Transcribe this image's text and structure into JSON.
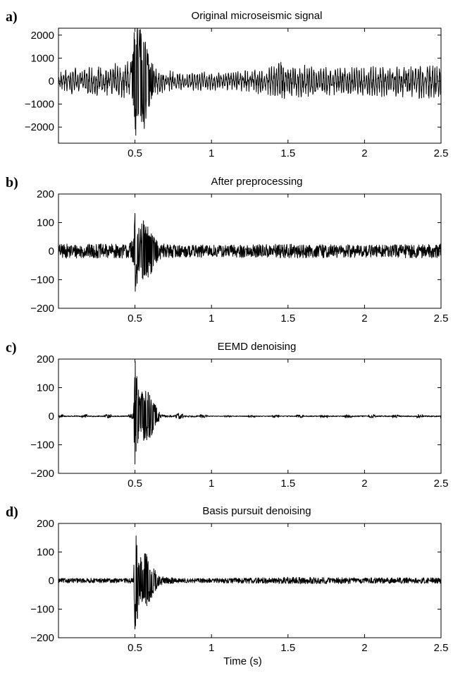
{
  "chart_data": [
    {
      "type": "line",
      "panel_label": "a)",
      "title": "Original microseismic signal",
      "xlabel": "",
      "ylabel": "",
      "xlim": [
        0,
        2.5
      ],
      "ylim": [
        -2700,
        2300
      ],
      "xticks": [
        0.5,
        1,
        1.5,
        2,
        2.5
      ],
      "xtick_labels": [
        "0.5",
        "1",
        "1.5",
        "2",
        "2.5"
      ],
      "yticks": [
        2000,
        1000,
        0,
        -1000,
        -2000
      ],
      "ytick_labels": [
        "2000",
        "1000",
        "0",
        "−1000",
        "−2000"
      ],
      "grid": false,
      "series": [
        {
          "x": [
            0,
            0.1,
            0.2,
            0.3,
            0.4,
            0.48,
            0.5,
            0.52,
            0.54,
            0.56,
            0.58,
            0.6,
            0.62,
            0.65,
            0.7,
            0.8,
            0.9,
            1.0,
            1.2,
            1.4,
            1.45,
            1.5,
            1.6,
            1.8,
            2.0,
            2.2,
            2.4,
            2.5
          ],
          "envelope": [
            400,
            600,
            700,
            700,
            800,
            900,
            2700,
            2400,
            2200,
            2100,
            1500,
            900,
            700,
            600,
            500,
            400,
            450,
            400,
            500,
            700,
            1000,
            700,
            800,
            600,
            700,
            700,
            800,
            900
          ],
          "noise": "oscillatory"
        }
      ]
    },
    {
      "type": "line",
      "panel_label": "b)",
      "title": "After preprocessing",
      "xlabel": "",
      "ylabel": "",
      "xlim": [
        0,
        2.5
      ],
      "ylim": [
        -200,
        200
      ],
      "xticks": [
        0.5,
        1,
        1.5,
        2,
        2.5
      ],
      "xtick_labels": [
        "0.5",
        "1",
        "1.5",
        "2",
        "2.5"
      ],
      "yticks": [
        200,
        100,
        0,
        -100,
        -200
      ],
      "ytick_labels": [
        "200",
        "100",
        "0",
        "−100",
        "−200"
      ],
      "grid": false,
      "series": [
        {
          "x": [
            0,
            0.45,
            0.49,
            0.5,
            0.51,
            0.53,
            0.55,
            0.57,
            0.6,
            0.62,
            0.65,
            0.7,
            0.8,
            1.0,
            1.5,
            2.0,
            2.5
          ],
          "envelope": [
            25,
            25,
            40,
            180,
            130,
            70,
            110,
            100,
            90,
            60,
            35,
            25,
            22,
            22,
            25,
            22,
            25
          ],
          "noise": "dense"
        }
      ]
    },
    {
      "type": "line",
      "panel_label": "c)",
      "title": "EEMD denoising",
      "xlabel": "",
      "ylabel": "",
      "xlim": [
        0,
        2.5
      ],
      "ylim": [
        -200,
        200
      ],
      "xticks": [
        0.5,
        1,
        1.5,
        2,
        2.5
      ],
      "xtick_labels": [
        "0.5",
        "1",
        "1.5",
        "2",
        "2.5"
      ],
      "yticks": [
        200,
        100,
        0,
        -100,
        -200
      ],
      "ytick_labels": [
        "200",
        "100",
        "0",
        "−100",
        "−200"
      ],
      "grid": false,
      "series": [
        {
          "x": [
            0,
            0.45,
            0.49,
            0.5,
            0.51,
            0.53,
            0.55,
            0.57,
            0.6,
            0.62,
            0.65,
            0.7,
            0.8,
            0.9,
            1.0,
            1.5,
            2.0,
            2.5
          ],
          "envelope": [
            6,
            6,
            10,
            200,
            150,
            70,
            100,
            110,
            85,
            55,
            20,
            12,
            10,
            8,
            3,
            5,
            6,
            6
          ],
          "noise": "bursty"
        }
      ]
    },
    {
      "type": "line",
      "panel_label": "d)",
      "title": "Basis pursuit denoising",
      "xlabel": "Time (s)",
      "ylabel": "",
      "xlim": [
        0,
        2.5
      ],
      "ylim": [
        -200,
        200
      ],
      "xticks": [
        0.5,
        1,
        1.5,
        2,
        2.5
      ],
      "xtick_labels": [
        "0.5",
        "1",
        "1.5",
        "2",
        "2.5"
      ],
      "yticks": [
        200,
        100,
        0,
        -100,
        -200
      ],
      "ytick_labels": [
        "200",
        "100",
        "0",
        "−100",
        "−200"
      ],
      "grid": false,
      "series": [
        {
          "x": [
            0,
            0.45,
            0.49,
            0.5,
            0.51,
            0.53,
            0.55,
            0.57,
            0.6,
            0.62,
            0.65,
            0.7,
            0.8,
            1.0,
            1.5,
            2.0,
            2.5
          ],
          "envelope": [
            8,
            8,
            12,
            180,
            160,
            70,
            100,
            95,
            80,
            50,
            20,
            12,
            8,
            8,
            12,
            10,
            10
          ],
          "noise": "dense"
        }
      ]
    }
  ]
}
